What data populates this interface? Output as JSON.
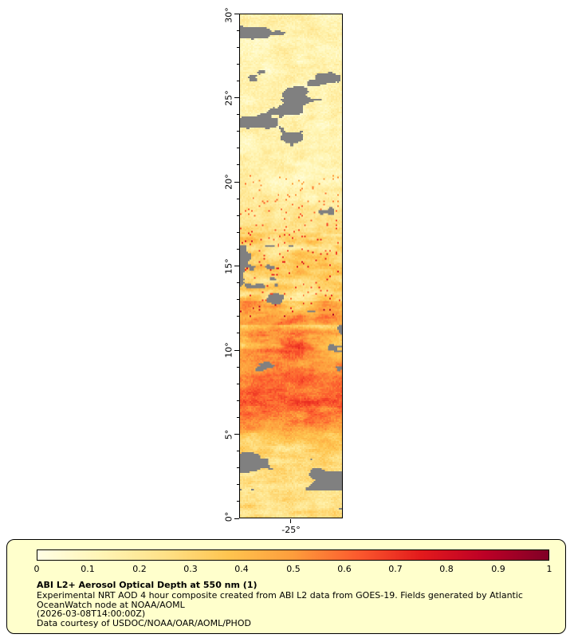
{
  "figure": {
    "background": "#FFFFFF"
  },
  "map": {
    "y_ticks": [
      "30°",
      "25°",
      "20°",
      "15°",
      "10°",
      "5°",
      "0°"
    ],
    "x_tick": "-25°",
    "lat_range": [
      0,
      30
    ],
    "nodata_color": "#808080",
    "border_color": "#000000"
  },
  "legend": {
    "background": "#FFFFCC",
    "border_color": "#000000",
    "colormap_stops": [
      "#FFFFE5",
      "#FFF5B5",
      "#FEE187",
      "#FEC44F",
      "#FD9D3C",
      "#FC5B2E",
      "#E31A1C",
      "#BD0026",
      "#800026"
    ],
    "ticks": [
      "0",
      "0.1",
      "0.2",
      "0.3",
      "0.4",
      "0.5",
      "0.6",
      "0.7",
      "0.8",
      "0.9",
      "1"
    ],
    "title": "ABI L2+ Aerosol Optical Depth at 550 nm (1)",
    "description_lines": [
      "Experimental NRT AOD 4 hour composite created from ABI L2 data from GOES-19. Fields generated by Atlantic",
      "OceanWatch node at NOAA/AOML",
      "(2026-03-08T14:00:00Z)",
      "Data courtesy of USDOC/NOAA/OAR/AOML/PHOD"
    ]
  }
}
